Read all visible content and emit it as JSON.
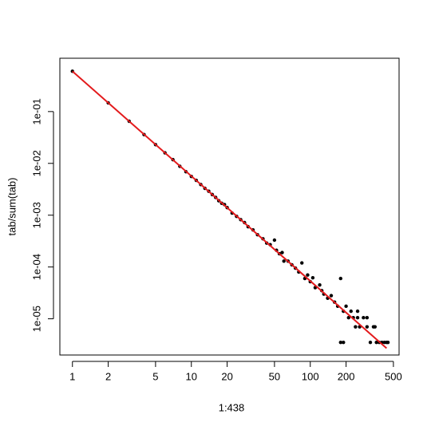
{
  "chart_data": {
    "type": "scatter",
    "log_x": true,
    "log_y": true,
    "x_label": "1:438",
    "y_label": "tab/sum(tab)",
    "xlim": [
      0.784,
      558
    ],
    "ylim": [
      2e-06,
      1.07
    ],
    "xticks": [
      1,
      2,
      5,
      10,
      20,
      50,
      100,
      200,
      500
    ],
    "yticks": [
      {
        "value": 1e-05,
        "label": "1e-05"
      },
      {
        "value": 0.0001,
        "label": "1e-04"
      },
      {
        "value": 0.001,
        "label": "1e-03"
      },
      {
        "value": 0.01,
        "label": "1e-02"
      },
      {
        "value": 0.1,
        "label": "1e-01"
      }
    ],
    "series": [
      {
        "type": "scatter",
        "color": "#000000",
        "x": [
          1,
          2,
          3,
          4,
          5,
          6,
          7,
          8,
          9,
          10,
          11,
          12,
          13,
          14,
          15,
          16,
          17,
          18,
          19,
          20,
          22,
          24,
          26,
          28,
          30,
          33,
          36,
          40,
          43,
          46,
          50,
          52,
          55,
          58,
          60,
          65,
          70,
          75,
          80,
          85,
          90,
          95,
          100,
          105,
          110,
          120,
          125,
          130,
          140,
          150,
          160,
          170,
          180,
          190,
          200,
          210,
          220,
          230,
          240,
          250,
          260,
          280,
          300,
          320,
          340,
          360,
          380,
          400,
          420,
          438,
          180,
          190,
          250,
          300,
          350,
          450
        ],
        "values": [
          0.6,
          0.147,
          0.065,
          0.036,
          0.023,
          0.016,
          0.0118,
          0.0088,
          0.0069,
          0.0056,
          0.0047,
          0.0039,
          0.0033,
          0.0029,
          0.0025,
          0.0022,
          0.0019,
          0.0017,
          0.0016,
          0.0014,
          0.0011,
          0.00095,
          0.00082,
          0.00072,
          0.0006,
          0.00052,
          0.00042,
          0.00035,
          0.00029,
          0.00027,
          0.00033,
          0.00021,
          0.00018,
          0.00019,
          0.00013,
          0.00013,
          0.00011,
          9.5e-05,
          8e-05,
          0.00012,
          6e-05,
          7e-05,
          5.2e-05,
          6.2e-05,
          4e-05,
          4.5e-05,
          3.5e-05,
          3e-05,
          2.5e-05,
          2.8e-05,
          2.1e-05,
          1.75e-05,
          6e-05,
          1.4e-05,
          1.75e-05,
          1.05e-05,
          1.4e-05,
          1.05e-05,
          7e-06,
          1.05e-05,
          7e-06,
          1.05e-05,
          7e-06,
          3.5e-06,
          7e-06,
          3.5e-06,
          3.5e-06,
          3.5e-06,
          3.5e-06,
          3.5e-06,
          3.5e-06,
          3.5e-06,
          1.4e-05,
          1.05e-05,
          7e-06,
          3.5e-06
        ]
      },
      {
        "type": "line",
        "color": "#e31a1c",
        "x": [
          1,
          438
        ],
        "values": [
          0.6,
          2.7e-06
        ]
      }
    ]
  }
}
